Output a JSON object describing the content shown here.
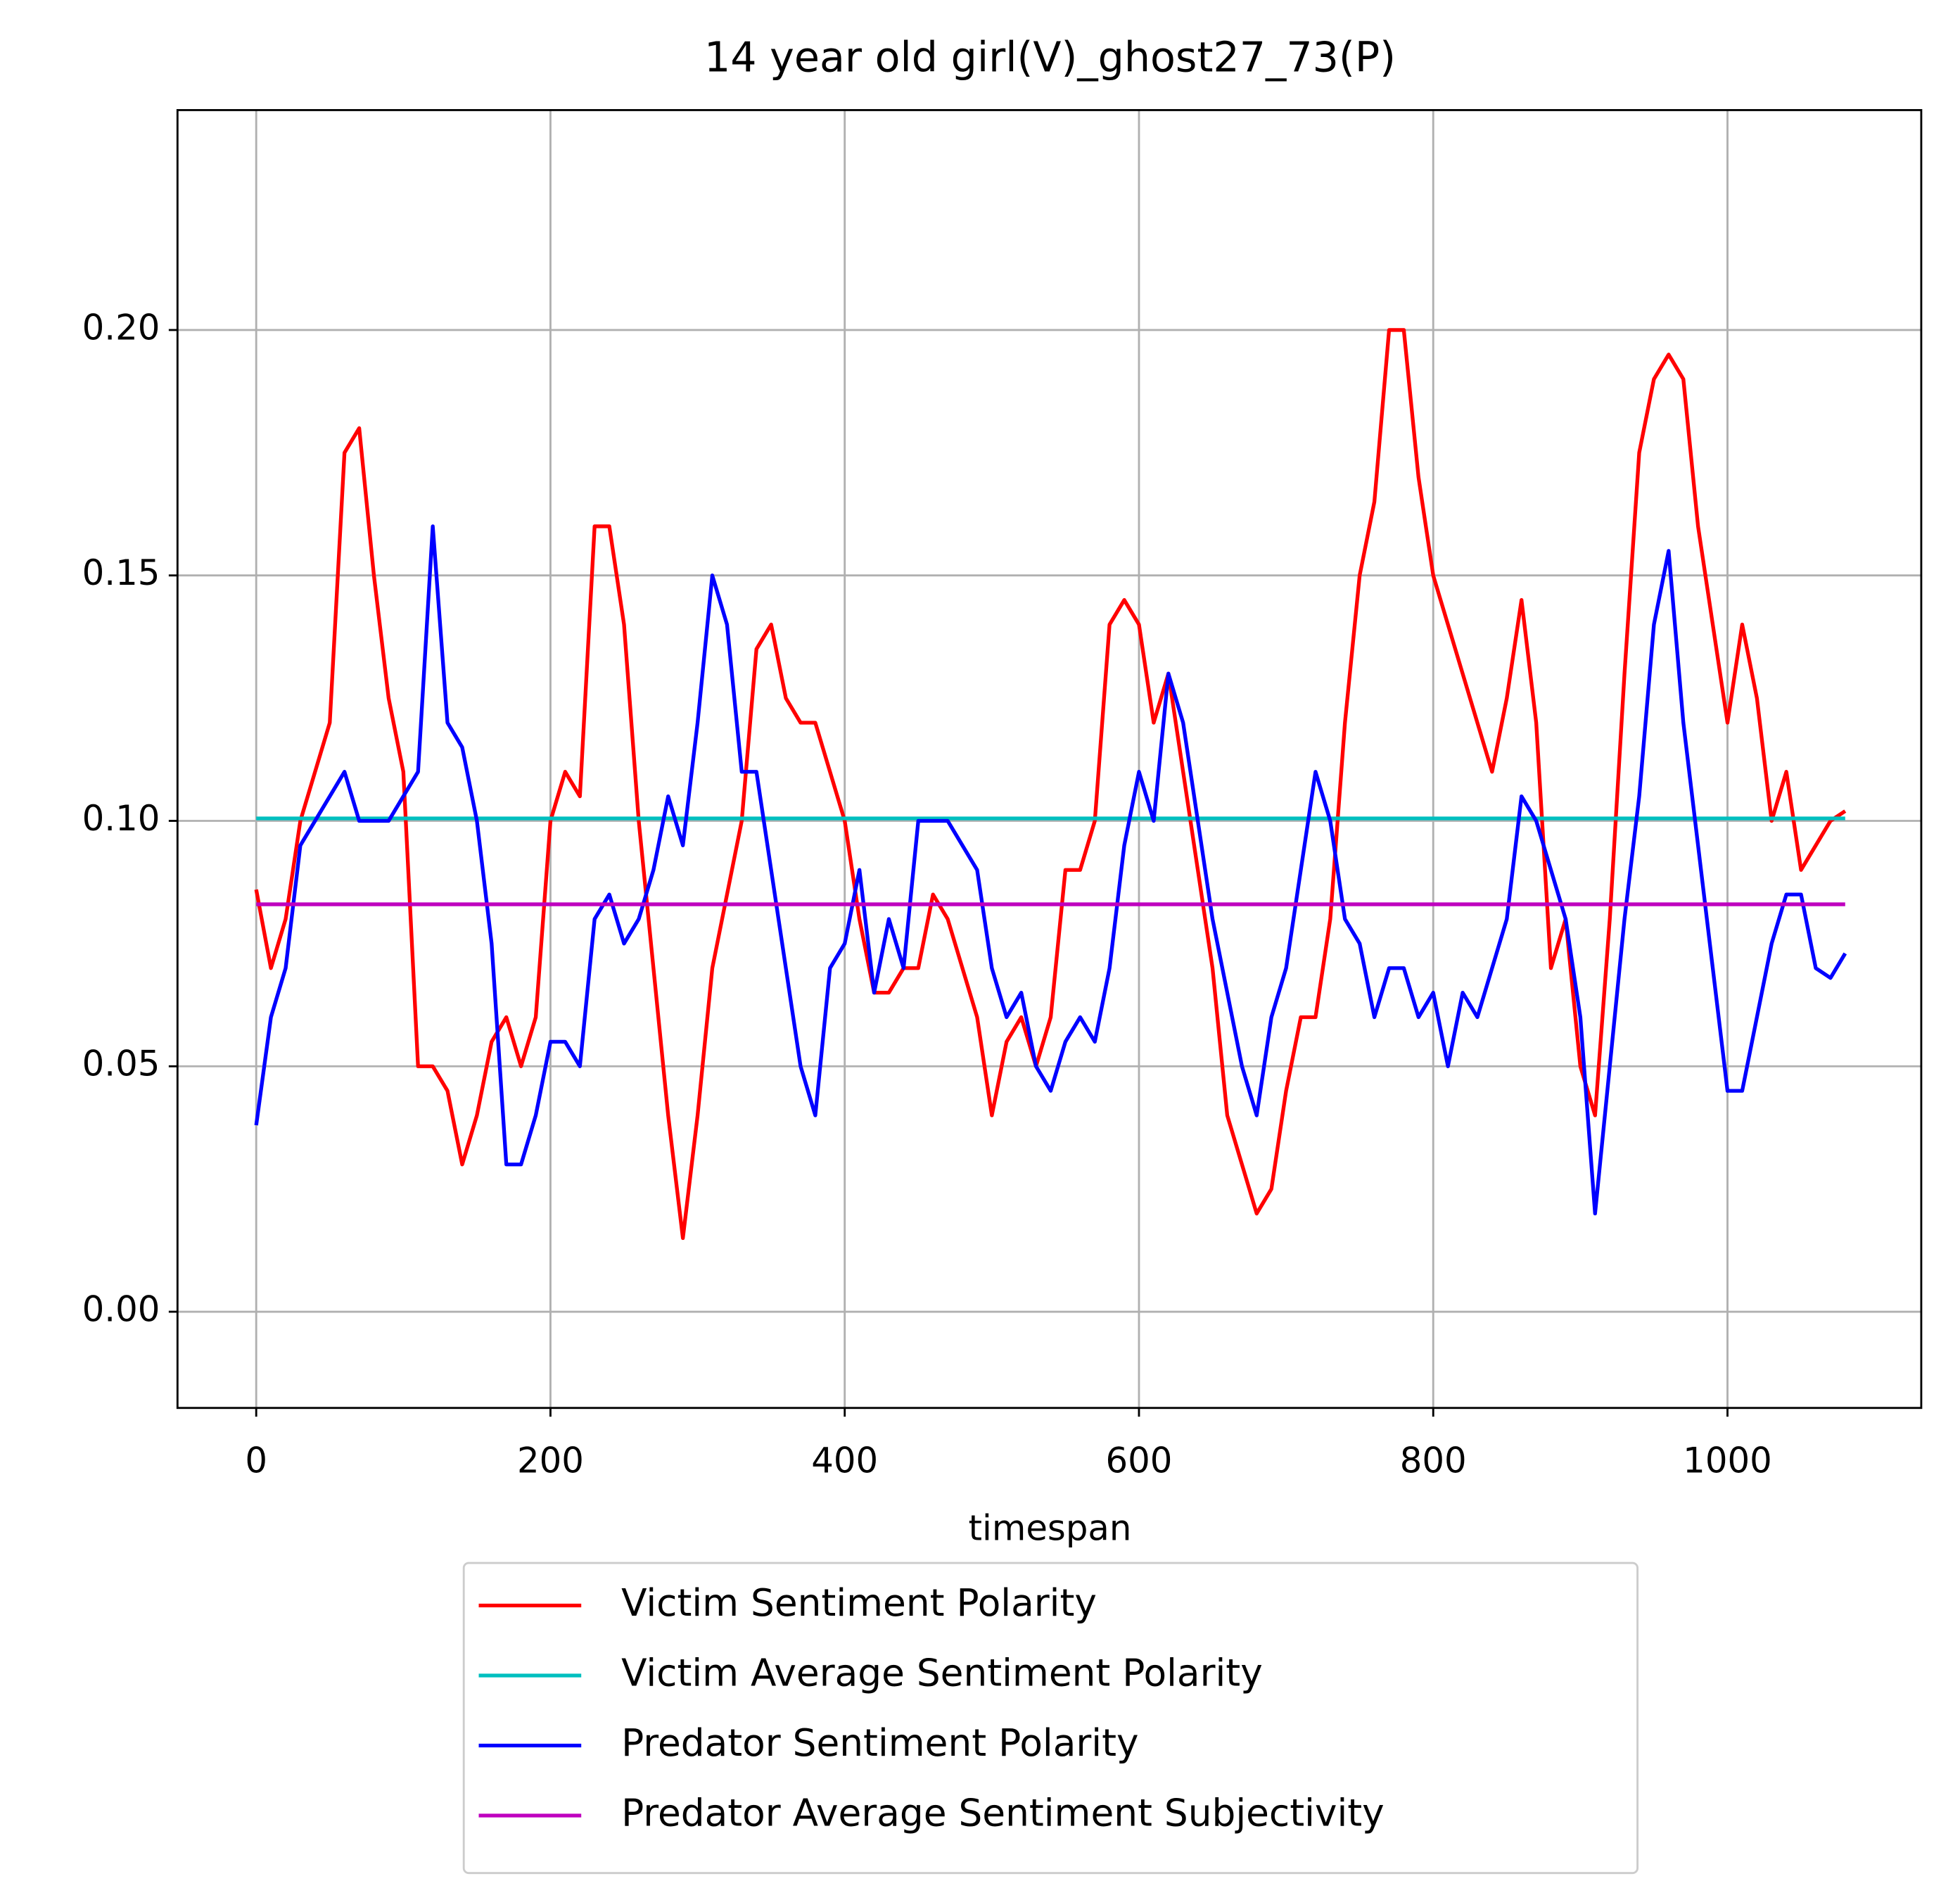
{
  "chart_data": {
    "type": "line",
    "title": "14 year old girl(V)_ghost27_73(P)",
    "x_label": "timespan",
    "x": [
      0,
      10,
      20,
      30,
      40,
      50,
      60,
      70,
      80,
      90,
      100,
      110,
      120,
      130,
      140,
      150,
      160,
      170,
      180,
      190,
      200,
      210,
      220,
      230,
      240,
      250,
      260,
      270,
      280,
      290,
      300,
      310,
      320,
      330,
      340,
      350,
      360,
      370,
      380,
      390,
      400,
      410,
      420,
      430,
      440,
      450,
      460,
      470,
      480,
      490,
      500,
      510,
      520,
      530,
      540,
      550,
      560,
      570,
      580,
      590,
      600,
      610,
      620,
      630,
      640,
      650,
      660,
      670,
      680,
      690,
      700,
      710,
      720,
      730,
      740,
      750,
      760,
      770,
      780,
      790,
      800,
      810,
      820,
      830,
      840,
      850,
      860,
      870,
      880,
      890,
      900,
      910,
      920,
      930,
      940,
      950,
      960,
      970,
      980,
      990,
      1000,
      1010,
      1020,
      1030,
      1040,
      1050,
      1060,
      1070,
      1080
    ],
    "series": [
      {
        "name": "Victim Sentiment Polarity",
        "color": "#ff0000",
        "values": [
          0.086,
          0.07,
          0.08,
          0.1,
          0.11,
          0.12,
          0.175,
          0.18,
          0.15,
          0.125,
          0.11,
          0.05,
          0.05,
          0.045,
          0.03,
          0.04,
          0.055,
          0.06,
          0.05,
          0.06,
          0.1,
          0.11,
          0.105,
          0.16,
          0.16,
          0.14,
          0.1,
          0.07,
          0.04,
          0.015,
          0.04,
          0.07,
          0.085,
          0.1,
          0.135,
          0.14,
          0.125,
          0.12,
          0.12,
          0.11,
          0.1,
          0.08,
          0.065,
          0.065,
          0.07,
          0.07,
          0.085,
          0.08,
          0.07,
          0.06,
          0.04,
          0.055,
          0.06,
          0.05,
          0.06,
          0.09,
          0.09,
          0.1,
          0.14,
          0.145,
          0.14,
          0.12,
          0.13,
          0.11,
          0.09,
          0.07,
          0.04,
          0.03,
          0.02,
          0.025,
          0.045,
          0.06,
          0.06,
          0.08,
          0.12,
          0.15,
          0.165,
          0.2,
          0.2,
          0.17,
          0.15,
          0.14,
          0.13,
          0.12,
          0.11,
          0.125,
          0.145,
          0.12,
          0.07,
          0.08,
          0.05,
          0.04,
          0.08,
          0.13,
          0.175,
          0.19,
          0.195,
          0.19,
          0.16,
          0.14,
          0.12,
          0.14,
          0.125,
          0.1,
          0.11,
          0.09,
          0.095,
          0.1,
          0.102
        ]
      },
      {
        "name": "Victim Average Sentiment Polarity",
        "color": "#00bfbf",
        "values": [
          0.1005,
          0.1005,
          0.1005,
          0.1005,
          0.1005,
          0.1005,
          0.1005,
          0.1005,
          0.1005,
          0.1005,
          0.1005,
          0.1005,
          0.1005,
          0.1005,
          0.1005,
          0.1005,
          0.1005,
          0.1005,
          0.1005,
          0.1005,
          0.1005,
          0.1005,
          0.1005,
          0.1005,
          0.1005,
          0.1005,
          0.1005,
          0.1005,
          0.1005,
          0.1005,
          0.1005,
          0.1005,
          0.1005,
          0.1005,
          0.1005,
          0.1005,
          0.1005,
          0.1005,
          0.1005,
          0.1005,
          0.1005,
          0.1005,
          0.1005,
          0.1005,
          0.1005,
          0.1005,
          0.1005,
          0.1005,
          0.1005,
          0.1005,
          0.1005,
          0.1005,
          0.1005,
          0.1005,
          0.1005,
          0.1005,
          0.1005,
          0.1005,
          0.1005,
          0.1005,
          0.1005,
          0.1005,
          0.1005,
          0.1005,
          0.1005,
          0.1005,
          0.1005,
          0.1005,
          0.1005,
          0.1005,
          0.1005,
          0.1005,
          0.1005,
          0.1005,
          0.1005,
          0.1005,
          0.1005,
          0.1005,
          0.1005,
          0.1005,
          0.1005,
          0.1005,
          0.1005,
          0.1005,
          0.1005,
          0.1005,
          0.1005,
          0.1005,
          0.1005,
          0.1005,
          0.1005,
          0.1005,
          0.1005,
          0.1005,
          0.1005,
          0.1005,
          0.1005,
          0.1005,
          0.1005,
          0.1005,
          0.1005,
          0.1005,
          0.1005,
          0.1005,
          0.1005,
          0.1005,
          0.1005,
          0.1005,
          0.1005
        ]
      },
      {
        "name": "Predator Sentiment Polarity",
        "color": "#0000ff",
        "values": [
          0.038,
          0.06,
          0.07,
          0.095,
          0.1,
          0.105,
          0.11,
          0.1,
          0.1,
          0.1,
          0.105,
          0.11,
          0.16,
          0.12,
          0.115,
          0.1,
          0.075,
          0.03,
          0.03,
          0.04,
          0.055,
          0.055,
          0.05,
          0.08,
          0.085,
          0.075,
          0.08,
          0.09,
          0.105,
          0.095,
          0.12,
          0.15,
          0.14,
          0.11,
          0.11,
          0.09,
          0.07,
          0.05,
          0.04,
          0.07,
          0.075,
          0.09,
          0.065,
          0.08,
          0.07,
          0.1,
          0.1,
          0.1,
          0.095,
          0.09,
          0.07,
          0.06,
          0.065,
          0.05,
          0.045,
          0.055,
          0.06,
          0.055,
          0.07,
          0.095,
          0.11,
          0.1,
          0.13,
          0.12,
          0.1,
          0.08,
          0.065,
          0.05,
          0.04,
          0.06,
          0.07,
          0.09,
          0.11,
          0.1,
          0.08,
          0.075,
          0.06,
          0.07,
          0.07,
          0.06,
          0.065,
          0.05,
          0.065,
          0.06,
          0.07,
          0.08,
          0.105,
          0.1,
          0.09,
          0.08,
          0.06,
          0.02,
          0.05,
          0.08,
          0.105,
          0.14,
          0.155,
          0.12,
          0.095,
          0.07,
          0.045,
          0.045,
          0.06,
          0.075,
          0.085,
          0.085,
          0.07,
          0.068,
          0.073
        ]
      },
      {
        "name": "Predator Average Sentiment Subjectivity",
        "color": "#bf00bf",
        "values": [
          0.083,
          0.083,
          0.083,
          0.083,
          0.083,
          0.083,
          0.083,
          0.083,
          0.083,
          0.083,
          0.083,
          0.083,
          0.083,
          0.083,
          0.083,
          0.083,
          0.083,
          0.083,
          0.083,
          0.083,
          0.083,
          0.083,
          0.083,
          0.083,
          0.083,
          0.083,
          0.083,
          0.083,
          0.083,
          0.083,
          0.083,
          0.083,
          0.083,
          0.083,
          0.083,
          0.083,
          0.083,
          0.083,
          0.083,
          0.083,
          0.083,
          0.083,
          0.083,
          0.083,
          0.083,
          0.083,
          0.083,
          0.083,
          0.083,
          0.083,
          0.083,
          0.083,
          0.083,
          0.083,
          0.083,
          0.083,
          0.083,
          0.083,
          0.083,
          0.083,
          0.083,
          0.083,
          0.083,
          0.083,
          0.083,
          0.083,
          0.083,
          0.083,
          0.083,
          0.083,
          0.083,
          0.083,
          0.083,
          0.083,
          0.083,
          0.083,
          0.083,
          0.083,
          0.083,
          0.083,
          0.083,
          0.083,
          0.083,
          0.083,
          0.083,
          0.083,
          0.083,
          0.083,
          0.083,
          0.083,
          0.083,
          0.083,
          0.083,
          0.083,
          0.083,
          0.083,
          0.083,
          0.083,
          0.083,
          0.083,
          0.083,
          0.083,
          0.083,
          0.083,
          0.083,
          0.083,
          0.083,
          0.083,
          0.083
        ]
      }
    ],
    "xlim": [
      -53.5,
      1131.7
    ],
    "ylim": [
      -0.0196,
      0.2448
    ],
    "xticks": [
      0,
      200,
      400,
      600,
      800,
      1000
    ],
    "yticks": [
      {
        "value": 0,
        "label": "0.00"
      },
      {
        "value": 0.05,
        "label": "0.05"
      },
      {
        "value": 0.1,
        "label": "0.10"
      },
      {
        "value": 0.15,
        "label": "0.15"
      },
      {
        "value": 0.2,
        "label": "0.20"
      }
    ],
    "grid": true,
    "legend": "below"
  }
}
